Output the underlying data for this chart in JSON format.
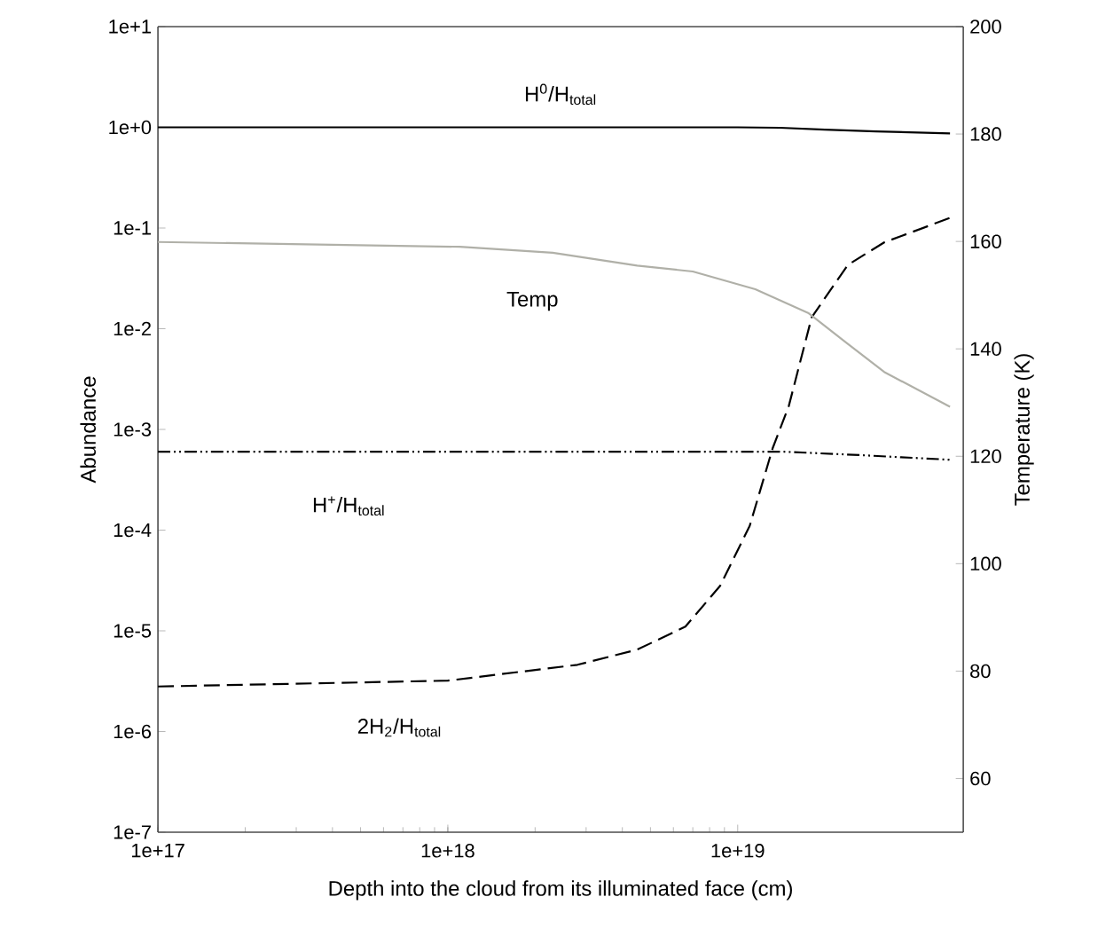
{
  "chart_data": {
    "type": "line",
    "xlabel": "Depth into the cloud from its illuminated face (cm)",
    "ylabel": "Abundance",
    "y2label": "Temperature (K)",
    "log": "xy",
    "xlim": [
      1e+17,
      6e+19
    ],
    "xticks": [
      {
        "value": 1e+17,
        "label": "1e+17"
      },
      {
        "value": 1e+18,
        "label": "1e+18"
      },
      {
        "value": 1e+19,
        "label": "1e+19"
      }
    ],
    "ylim": [
      1e-07,
      10
    ],
    "yticks": [
      {
        "value": 1e-07,
        "label": "1e-7"
      },
      {
        "value": 1e-06,
        "label": "1e-6"
      },
      {
        "value": 1e-05,
        "label": "1e-5"
      },
      {
        "value": 0.0001,
        "label": "1e-4"
      },
      {
        "value": 0.001,
        "label": "1e-3"
      },
      {
        "value": 0.01,
        "label": "1e-2"
      },
      {
        "value": 0.1,
        "label": "1e-1"
      },
      {
        "value": 1,
        "label": "1e+0"
      },
      {
        "value": 10,
        "label": "1e+1"
      }
    ],
    "y2lim": [
      50,
      200
    ],
    "y2ticks": [
      60,
      80,
      100,
      120,
      140,
      160,
      180,
      200
    ],
    "marker": "none",
    "series": [
      {
        "name": "H$^{0}$/H$_{total}$",
        "color": "#000000",
        "line_style": "solid",
        "x": [
          1e+17,
          1e+18,
          1e+19,
          1.4e+19,
          2e+19,
          3e+19,
          5.4e+19
        ],
        "values": [
          1,
          1,
          1,
          0.99,
          0.95,
          0.91,
          0.87
        ]
      },
      {
        "name": "Temp",
        "color": "#b0b0a8",
        "line_style": "solid",
        "axis": "y2",
        "x": [
          1e+17,
          1.1e+18,
          2.3e+18,
          4.5e+18,
          7e+18,
          1.15e+19,
          1.75e+19,
          2.35e+19,
          3.2e+19,
          5.4e+19
        ],
        "values": [
          159.9,
          159.0,
          157.9,
          155.5,
          154.4,
          151.1,
          146.7,
          141.3,
          135.7,
          129.2
        ]
      },
      {
        "name": "2H$_{2}$/H$_{total}$",
        "color": "#000000",
        "line_style": "dashed",
        "x": [
          1e+17,
          1e+18,
          2.8e+18,
          4.5e+18,
          6.6e+18,
          8.7e+18,
          1.1e+19,
          1.32e+19,
          1.5e+19,
          1.8e+19,
          2.4e+19,
          3.2e+19,
          5.4e+19
        ],
        "values": [
          2.8e-06,
          3.2e-06,
          4.6e-06,
          6.5e-06,
          1.1e-05,
          2.8e-05,
          0.00011,
          0.00065,
          0.0017,
          0.013,
          0.043,
          0.072,
          0.126
        ]
      },
      {
        "name": "H$^{+}$/H$_{total}$",
        "color": "#000000",
        "line_style": "dashdotdotted",
        "x": [
          1e+17,
          1e+18,
          1e+19,
          1.45e+19,
          2.5e+19,
          5.4e+19
        ],
        "values": [
          0.0006,
          0.0006,
          0.0006,
          0.0006,
          0.00056,
          0.0005
        ]
      }
    ]
  }
}
